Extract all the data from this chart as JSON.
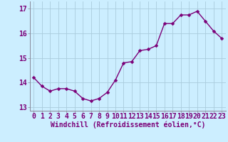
{
  "x": [
    0,
    1,
    2,
    3,
    4,
    5,
    6,
    7,
    8,
    9,
    10,
    11,
    12,
    13,
    14,
    15,
    16,
    17,
    18,
    19,
    20,
    21,
    22,
    23
  ],
  "y": [
    14.2,
    13.85,
    13.65,
    13.75,
    13.75,
    13.65,
    13.35,
    13.25,
    13.35,
    13.6,
    14.1,
    14.8,
    14.85,
    15.3,
    15.35,
    15.5,
    16.4,
    16.4,
    16.75,
    16.75,
    16.9,
    16.5,
    16.1,
    15.8
  ],
  "line_color": "#7b0078",
  "marker": "D",
  "marker_size": 2.5,
  "bg_color": "#cceeff",
  "grid_color": "#aaccdd",
  "xlabel": "Windchill (Refroidissement éolien,°C)",
  "xlim": [
    -0.5,
    23.5
  ],
  "ylim": [
    12.85,
    17.3
  ],
  "yticks": [
    13,
    14,
    15,
    16,
    17
  ],
  "xticks": [
    0,
    1,
    2,
    3,
    4,
    5,
    6,
    7,
    8,
    9,
    10,
    11,
    12,
    13,
    14,
    15,
    16,
    17,
    18,
    19,
    20,
    21,
    22,
    23
  ],
  "xlabel_fontsize": 7,
  "tick_fontsize": 7,
  "line_width": 1.0,
  "spine_color": "#888899"
}
